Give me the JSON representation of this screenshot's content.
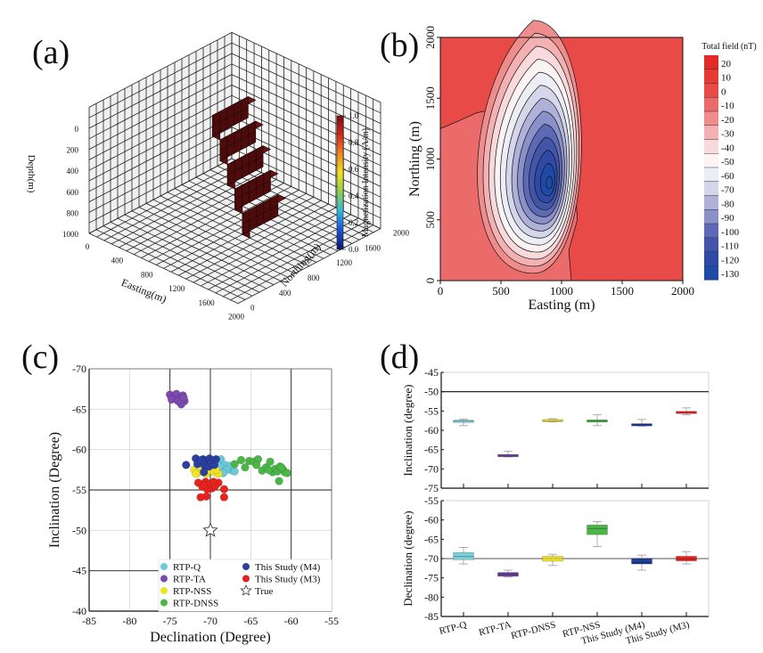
{
  "panels": {
    "a": {
      "label": "(a)"
    },
    "b": {
      "label": "(b)"
    },
    "c": {
      "label": "(c)"
    },
    "d": {
      "label": "(d)"
    }
  },
  "chart_data": [
    {
      "id": "a",
      "type": "3d-voxel",
      "title": "",
      "xlabel": "Easting(m)",
      "ylabel": "Northing(m)",
      "zlabel": "Depth(m)",
      "x_ticks": [
        "0",
        "400",
        "800",
        "1200",
        "1600",
        "2000"
      ],
      "y_ticks": [
        "0",
        "400",
        "800",
        "1200",
        "1600",
        "2000"
      ],
      "z_ticks": [
        "0",
        "200",
        "400",
        "600",
        "800",
        "1000"
      ],
      "xlim": [
        0,
        2000
      ],
      "ylim": [
        0,
        2000
      ],
      "zlim": [
        0,
        1000
      ],
      "colorbar": {
        "label": "Magnetization Intensity (A/m)",
        "ticks": [
          "0.0",
          "0.2",
          "0.4",
          "0.6",
          "0.8",
          "1.0"
        ],
        "range": [
          0,
          1
        ],
        "colormap": [
          "#0a1a6b",
          "#1f4fd1",
          "#2fb8e0",
          "#8fd14f",
          "#f3e21a",
          "#f5871f",
          "#d7261e",
          "#7a0d0d"
        ]
      },
      "body": {
        "value": 1.0,
        "color": "#5a0f0f",
        "description": "dipping stepped prism of unit-magnetization cells",
        "steps": 5
      }
    },
    {
      "id": "b",
      "type": "contour",
      "title": "",
      "xlabel": "Easting (m)",
      "ylabel": "Northing (m)",
      "x_ticks": [
        "0",
        "500",
        "1000",
        "1500",
        "2000"
      ],
      "y_ticks": [
        "0",
        "500",
        "1000",
        "1500",
        "2000"
      ],
      "xlim": [
        0,
        2000
      ],
      "ylim": [
        0,
        2000
      ],
      "anomaly": {
        "min_center": [
          900,
          780
        ],
        "min_value": -130,
        "positive_center": [
          820,
          1620
        ],
        "positive_value": 20
      },
      "colorbar": {
        "label": "Total field (nT)",
        "levels": [
          20,
          10,
          0,
          -10,
          -20,
          -30,
          -40,
          -50,
          -60,
          -70,
          -80,
          -90,
          -100,
          -110,
          -120,
          -130
        ],
        "colors": [
          "#e22a27",
          "#e63a37",
          "#e84a48",
          "#eb6b6a",
          "#ef8d8d",
          "#f4b1b3",
          "#f9dadc",
          "#fcf3f4",
          "#ededf6",
          "#d6d6ea",
          "#b0b1d8",
          "#8a91c8",
          "#5d69b5",
          "#4255a8",
          "#2f4aa6",
          "#1e4ba8"
        ]
      }
    },
    {
      "id": "c",
      "type": "scatter",
      "title": "",
      "xlabel": "Declination (Degree)",
      "ylabel": "Inclination (Degree)",
      "xlim": [
        -85,
        -55
      ],
      "ylim": [
        -40,
        -70
      ],
      "x_ticks": [
        "-85",
        "-80",
        "-75",
        "-70",
        "-65",
        "-60",
        "-55"
      ],
      "y_ticks": [
        "-70",
        "-65",
        "-60",
        "-55",
        "-50",
        "-45",
        "-40"
      ],
      "grid": true,
      "reference_lines": {
        "x": [
          -75,
          -70,
          -60
        ],
        "y": [
          -55,
          -45
        ]
      },
      "legend": {
        "placement": "bottom-right"
      },
      "series": [
        {
          "name": "RTP-Q",
          "color": "#6ccad8",
          "points": [
            [
              -68.7,
              -58.8
            ],
            [
              -68.2,
              -58.1
            ],
            [
              -67.8,
              -57.6
            ],
            [
              -67.3,
              -57.4
            ],
            [
              -68.5,
              -57.3
            ],
            [
              -67.6,
              -58.0
            ],
            [
              -68.9,
              -57.9
            ],
            [
              -68.0,
              -57.5
            ],
            [
              -67.0,
              -57.3
            ],
            [
              -68.4,
              -57.1
            ]
          ]
        },
        {
          "name": "RTP-TA",
          "color": "#7d4ab0",
          "points": [
            [
              -75.0,
              -66.8
            ],
            [
              -74.6,
              -66.5
            ],
            [
              -74.2,
              -66.9
            ],
            [
              -73.8,
              -66.3
            ],
            [
              -73.4,
              -66.7
            ],
            [
              -73.2,
              -66.0
            ],
            [
              -73.6,
              -65.6
            ],
            [
              -74.8,
              -66.2
            ],
            [
              -74.0,
              -66.0
            ],
            [
              -73.3,
              -66.4
            ]
          ]
        },
        {
          "name": "RTP-NSS",
          "color": "#f0e42a",
          "points": [
            [
              -72.0,
              -57.5
            ],
            [
              -71.6,
              -57.1
            ],
            [
              -71.0,
              -57.3
            ],
            [
              -70.5,
              -57.0
            ],
            [
              -70.0,
              -57.4
            ],
            [
              -69.5,
              -57.2
            ],
            [
              -69.0,
              -57.0
            ],
            [
              -71.8,
              -57.0
            ],
            [
              -70.8,
              -57.6
            ],
            [
              -69.3,
              -57.5
            ]
          ]
        },
        {
          "name": "RTP-DNSS",
          "color": "#4cb548",
          "points": [
            [
              -67.0,
              -58.2
            ],
            [
              -66.2,
              -58.7
            ],
            [
              -65.7,
              -57.8
            ],
            [
              -65.2,
              -58.6
            ],
            [
              -64.6,
              -58.5
            ],
            [
              -64.1,
              -58.8
            ],
            [
              -64.3,
              -58.1
            ],
            [
              -63.6,
              -57.4
            ],
            [
              -63.1,
              -57.8
            ],
            [
              -62.6,
              -58.5
            ],
            [
              -62.3,
              -57.2
            ],
            [
              -62.0,
              -57.6
            ],
            [
              -61.7,
              -57.3
            ],
            [
              -61.4,
              -57.9
            ],
            [
              -61.0,
              -57.5
            ],
            [
              -60.8,
              -57.2
            ],
            [
              -60.5,
              -57.1
            ],
            [
              -61.5,
              -56.1
            ],
            [
              -62.8,
              -57.5
            ],
            [
              -61.2,
              -57.8
            ]
          ]
        },
        {
          "name": "This Study (M4)",
          "color": "#2b3f9e",
          "points": [
            [
              -73.0,
              -58.1
            ],
            [
              -71.8,
              -58.9
            ],
            [
              -71.3,
              -58.5
            ],
            [
              -70.9,
              -58.8
            ],
            [
              -70.5,
              -58.4
            ],
            [
              -70.1,
              -58.9
            ],
            [
              -69.7,
              -58.6
            ],
            [
              -69.3,
              -58.8
            ],
            [
              -71.6,
              -58.2
            ],
            [
              -70.7,
              -58.0
            ],
            [
              -70.2,
              -57.9
            ],
            [
              -69.9,
              -58.3
            ],
            [
              -70.8,
              -57.2
            ],
            [
              -71.1,
              -58.7
            ],
            [
              -69.5,
              -58.1
            ]
          ]
        },
        {
          "name": "This Study (M3)",
          "color": "#e52421",
          "points": [
            [
              -71.5,
              -55.9
            ],
            [
              -71.0,
              -55.4
            ],
            [
              -70.6,
              -56.0
            ],
            [
              -70.2,
              -55.6
            ],
            [
              -69.8,
              -55.2
            ],
            [
              -69.4,
              -55.5
            ],
            [
              -69.0,
              -55.9
            ],
            [
              -70.4,
              -55.1
            ],
            [
              -71.2,
              -54.1
            ],
            [
              -70.5,
              -54.2
            ],
            [
              -68.3,
              -55.1
            ],
            [
              -68.3,
              -54.1
            ],
            [
              -70.0,
              -55.8
            ],
            [
              -69.6,
              -56.0
            ],
            [
              -70.8,
              -55.6
            ]
          ]
        },
        {
          "name": "True",
          "color": "#ffffff",
          "marker": "star",
          "points": [
            [
              -70,
              -50
            ]
          ]
        }
      ]
    },
    {
      "id": "d",
      "type": "box",
      "categories": [
        "RTP-Q",
        "RTP-TA",
        "RTP-DNSS",
        "RTP-NSS",
        "This Study (M4)",
        "This Study (M3)"
      ],
      "colors": [
        "#7ccfd9",
        "#6a3fa0",
        "#efe433",
        "#4cb548",
        "#1f3d99",
        "#e52421"
      ],
      "subplots": [
        {
          "ylabel": "Inclination (degree)",
          "ylim": [
            -75,
            -45
          ],
          "y_ticks": [
            "-45",
            "-50",
            "-55",
            "-60",
            "-65",
            "-70",
            "-75"
          ],
          "reference_line": -50,
          "boxes": [
            {
              "min": -58.8,
              "q1": -57.9,
              "median": -57.6,
              "q3": -57.4,
              "max": -57.1
            },
            {
              "min": -66.9,
              "q1": -66.6,
              "median": -66.4,
              "q3": -66.3,
              "max": -65.4
            },
            {
              "min": -57.8,
              "q1": -57.8,
              "median": -57.5,
              "q3": -57.2,
              "max": -57.0
            },
            {
              "min": -58.8,
              "q1": -57.9,
              "median": -57.5,
              "q3": -57.3,
              "max": -56.0
            },
            {
              "min": -58.9,
              "q1": -58.8,
              "median": -58.4,
              "q3": -58.3,
              "max": -57.2
            },
            {
              "min": -56.0,
              "q1": -55.6,
              "median": -55.3,
              "q3": -55.1,
              "max": -54.2
            }
          ]
        },
        {
          "ylabel": "Declination (degree)",
          "ylim": [
            -85,
            -55
          ],
          "y_ticks": [
            "-55",
            "-60",
            "-65",
            "-70",
            "-75",
            "-80",
            "-85"
          ],
          "reference_line": -70,
          "boxes": [
            {
              "min": -71.4,
              "q1": -70.3,
              "median": -69.5,
              "q3": -68.4,
              "max": -67.1
            },
            {
              "min": -74.8,
              "q1": -74.6,
              "median": -74.0,
              "q3": -73.6,
              "max": -73.0
            },
            {
              "min": -71.8,
              "q1": -70.7,
              "median": -70.0,
              "q3": -69.4,
              "max": -68.9
            },
            {
              "min": -66.9,
              "q1": -63.8,
              "median": -62.2,
              "q3": -61.3,
              "max": -60.4
            },
            {
              "min": -73.0,
              "q1": -71.4,
              "median": -71.0,
              "q3": -70.0,
              "max": -69.1
            },
            {
              "min": -71.4,
              "q1": -70.6,
              "median": -70.1,
              "q3": -69.4,
              "max": -68.2
            }
          ]
        }
      ]
    }
  ]
}
